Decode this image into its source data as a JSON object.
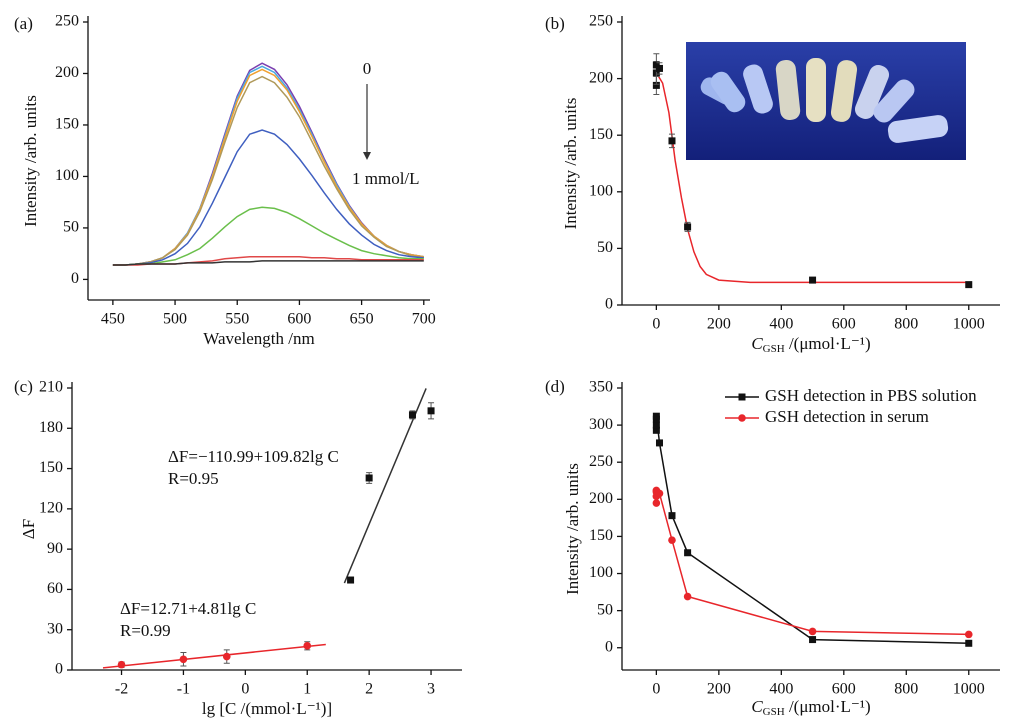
{
  "chart_data": [
    {
      "type": "line",
      "panel": "(a)",
      "x_label": "Wavelength /nm",
      "y_label": "Intensity /arb. units",
      "xlim": [
        430,
        705
      ],
      "ylim": [
        -20,
        250
      ],
      "xticks": [
        450,
        500,
        550,
        600,
        650,
        700
      ],
      "yticks": [
        0,
        50,
        100,
        150,
        200,
        250
      ],
      "annotations": [
        "0",
        "1 mmol/L"
      ],
      "x": [
        450,
        460,
        470,
        480,
        490,
        500,
        510,
        520,
        530,
        540,
        550,
        560,
        570,
        580,
        590,
        600,
        610,
        620,
        630,
        640,
        650,
        660,
        670,
        680,
        690,
        700
      ],
      "series": [
        {
          "color": "#7a3fb0",
          "values": [
            14,
            14,
            15,
            17,
            21,
            30,
            45,
            69,
            103,
            141,
            178,
            203,
            210,
            204,
            189,
            168,
            143,
            117,
            93,
            72,
            55,
            42,
            33,
            27,
            24,
            22
          ]
        },
        {
          "color": "#4aa8e0",
          "values": [
            14,
            14,
            15,
            17,
            21,
            30,
            45,
            69,
            101,
            139,
            176,
            201,
            207,
            201,
            186,
            165,
            141,
            115,
            92,
            71,
            54,
            42,
            33,
            27,
            24,
            22
          ]
        },
        {
          "color": "#f0a030",
          "values": [
            14,
            14,
            15,
            17,
            21,
            30,
            44,
            68,
            100,
            137,
            173,
            198,
            204,
            198,
            184,
            163,
            139,
            114,
            90,
            70,
            54,
            42,
            33,
            27,
            24,
            22
          ]
        },
        {
          "color": "#b09a5a",
          "values": [
            14,
            14,
            15,
            17,
            21,
            29,
            43,
            66,
            97,
            133,
            167,
            191,
            197,
            191,
            177,
            158,
            134,
            110,
            88,
            68,
            52,
            41,
            32,
            27,
            23,
            21
          ]
        },
        {
          "color": "#3f5fc0",
          "values": [
            14,
            14,
            15,
            16,
            19,
            25,
            35,
            51,
            74,
            99,
            124,
            141,
            145,
            141,
            131,
            117,
            101,
            84,
            68,
            54,
            43,
            34,
            28,
            24,
            22,
            21
          ]
        },
        {
          "color": "#6abf4b",
          "values": [
            14,
            14,
            15,
            15,
            17,
            19,
            24,
            30,
            40,
            51,
            61,
            68,
            70,
            69,
            65,
            59,
            52,
            45,
            39,
            33,
            28,
            25,
            23,
            21,
            20,
            20
          ]
        },
        {
          "color": "#e04848",
          "values": [
            14,
            14,
            14,
            15,
            15,
            15,
            16,
            17,
            18,
            20,
            21,
            22,
            22,
            22,
            22,
            22,
            21,
            21,
            20,
            20,
            19,
            19,
            19,
            19,
            19,
            19
          ]
        },
        {
          "color": "#333333",
          "values": [
            14,
            14,
            15,
            15,
            15,
            15,
            16,
            16,
            16,
            17,
            17,
            17,
            18,
            18,
            18,
            18,
            18,
            18,
            18,
            18,
            18,
            18,
            18,
            18,
            18,
            18
          ]
        }
      ]
    },
    {
      "type": "scatter",
      "panel": "(b)",
      "x_label": [
        "C",
        "GSH",
        " /(μmol·L⁻¹)"
      ],
      "y_label": "Intensity /arb. units",
      "xlim": [
        -110,
        1100
      ],
      "ylim": [
        0,
        250
      ],
      "xticks": [
        0,
        200,
        400,
        600,
        800,
        1000
      ],
      "yticks": [
        0,
        50,
        100,
        150,
        200,
        250
      ],
      "series": [
        {
          "color": "#e8262b",
          "line": true,
          "x": [
            0,
            20,
            40,
            60,
            80,
            100,
            120,
            140,
            160,
            200,
            300,
            500,
            1000
          ],
          "values": [
            205,
            196,
            170,
            128,
            95,
            67,
            47,
            34,
            27,
            22,
            20,
            20,
            20
          ]
        },
        {
          "color": "#111111",
          "marker": "square",
          "x": [
            0,
            0,
            0,
            10,
            50,
            100,
            500,
            1000
          ],
          "values": [
            194,
            205,
            212,
            209,
            145,
            69,
            22,
            18
          ],
          "errors": [
            8,
            10,
            10,
            5,
            6,
            4,
            2,
            2
          ]
        }
      ]
    },
    {
      "type": "scatter",
      "panel": "(c)",
      "x_label": "lg [C /(mmol·L⁻¹)]",
      "y_label": "ΔF",
      "xlim": [
        -2.8,
        3.5
      ],
      "ylim": [
        0,
        210
      ],
      "xticks": [
        -2,
        -1,
        0,
        1,
        2,
        3
      ],
      "yticks": [
        0,
        30,
        60,
        90,
        120,
        150,
        180,
        210
      ],
      "annotations": [
        "ΔF=−110.99+109.82lg C",
        "R=0.95",
        "ΔF=12.71+4.81lg C",
        "R=0.99"
      ],
      "series": [
        {
          "color": "#333333",
          "line": true,
          "x": [
            1.6,
            2.92
          ],
          "values": [
            64.7,
            209.7
          ]
        },
        {
          "color": "#e8262b",
          "line": true,
          "x": [
            -2.3,
            1.3
          ],
          "values": [
            1.6,
            19
          ]
        },
        {
          "color": "#111111",
          "marker": "square",
          "x": [
            1.7,
            2,
            2.7,
            3
          ],
          "values": [
            67,
            143,
            190,
            193
          ],
          "errors": [
            2,
            4,
            3,
            6
          ]
        },
        {
          "color": "#e8262b",
          "marker": "circle",
          "x": [
            -2,
            -1,
            -0.3,
            1
          ],
          "values": [
            4,
            8,
            10,
            18
          ],
          "errors": [
            2,
            5,
            5,
            3
          ]
        }
      ]
    },
    {
      "type": "line",
      "panel": "(d)",
      "x_label": [
        "C",
        "GSH",
        " /(μmol·L⁻¹)"
      ],
      "y_label": "Intensity /arb. units",
      "xlim": [
        -110,
        1100
      ],
      "ylim": [
        -30,
        350
      ],
      "xticks": [
        0,
        200,
        400,
        600,
        800,
        1000
      ],
      "yticks": [
        0,
        50,
        100,
        150,
        200,
        250,
        300,
        350
      ],
      "legend": "upper right",
      "series": [
        {
          "name": "GSH detection in PBS solution",
          "color": "#111111",
          "marker": "square",
          "x": [
            0,
            0,
            0,
            0,
            10,
            50,
            100,
            500,
            1000
          ],
          "values": [
            293,
            300,
            308,
            312,
            276,
            178,
            128,
            11,
            6
          ]
        },
        {
          "name": "GSH detection in serum",
          "color": "#e8262b",
          "marker": "circle",
          "x": [
            0,
            0,
            0,
            0,
            10,
            50,
            100,
            500,
            1000
          ],
          "values": [
            195,
            204,
            210,
            212,
            208,
            145,
            69,
            22,
            18
          ]
        }
      ]
    }
  ]
}
